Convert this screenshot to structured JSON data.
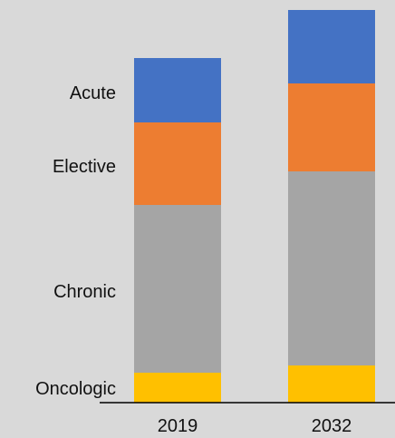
{
  "chart_data": {
    "type": "bar",
    "stacked": true,
    "title": "",
    "xlabel": "",
    "ylabel": "",
    "categories": [
      "2019",
      "2032"
    ],
    "series": [
      {
        "name": "Oncologic",
        "values": [
          33,
          41
        ],
        "color": "#ffc000"
      },
      {
        "name": "Chronic",
        "values": [
          185,
          214
        ],
        "color": "#a5a5a5"
      },
      {
        "name": "Elective",
        "values": [
          91,
          97
        ],
        "color": "#ed7d31"
      },
      {
        "name": "Acute",
        "values": [
          71,
          81
        ],
        "color": "#4472c4"
      }
    ],
    "ylim": [
      0,
      432
    ],
    "grid": false,
    "legend": "left-side inline labels"
  }
}
